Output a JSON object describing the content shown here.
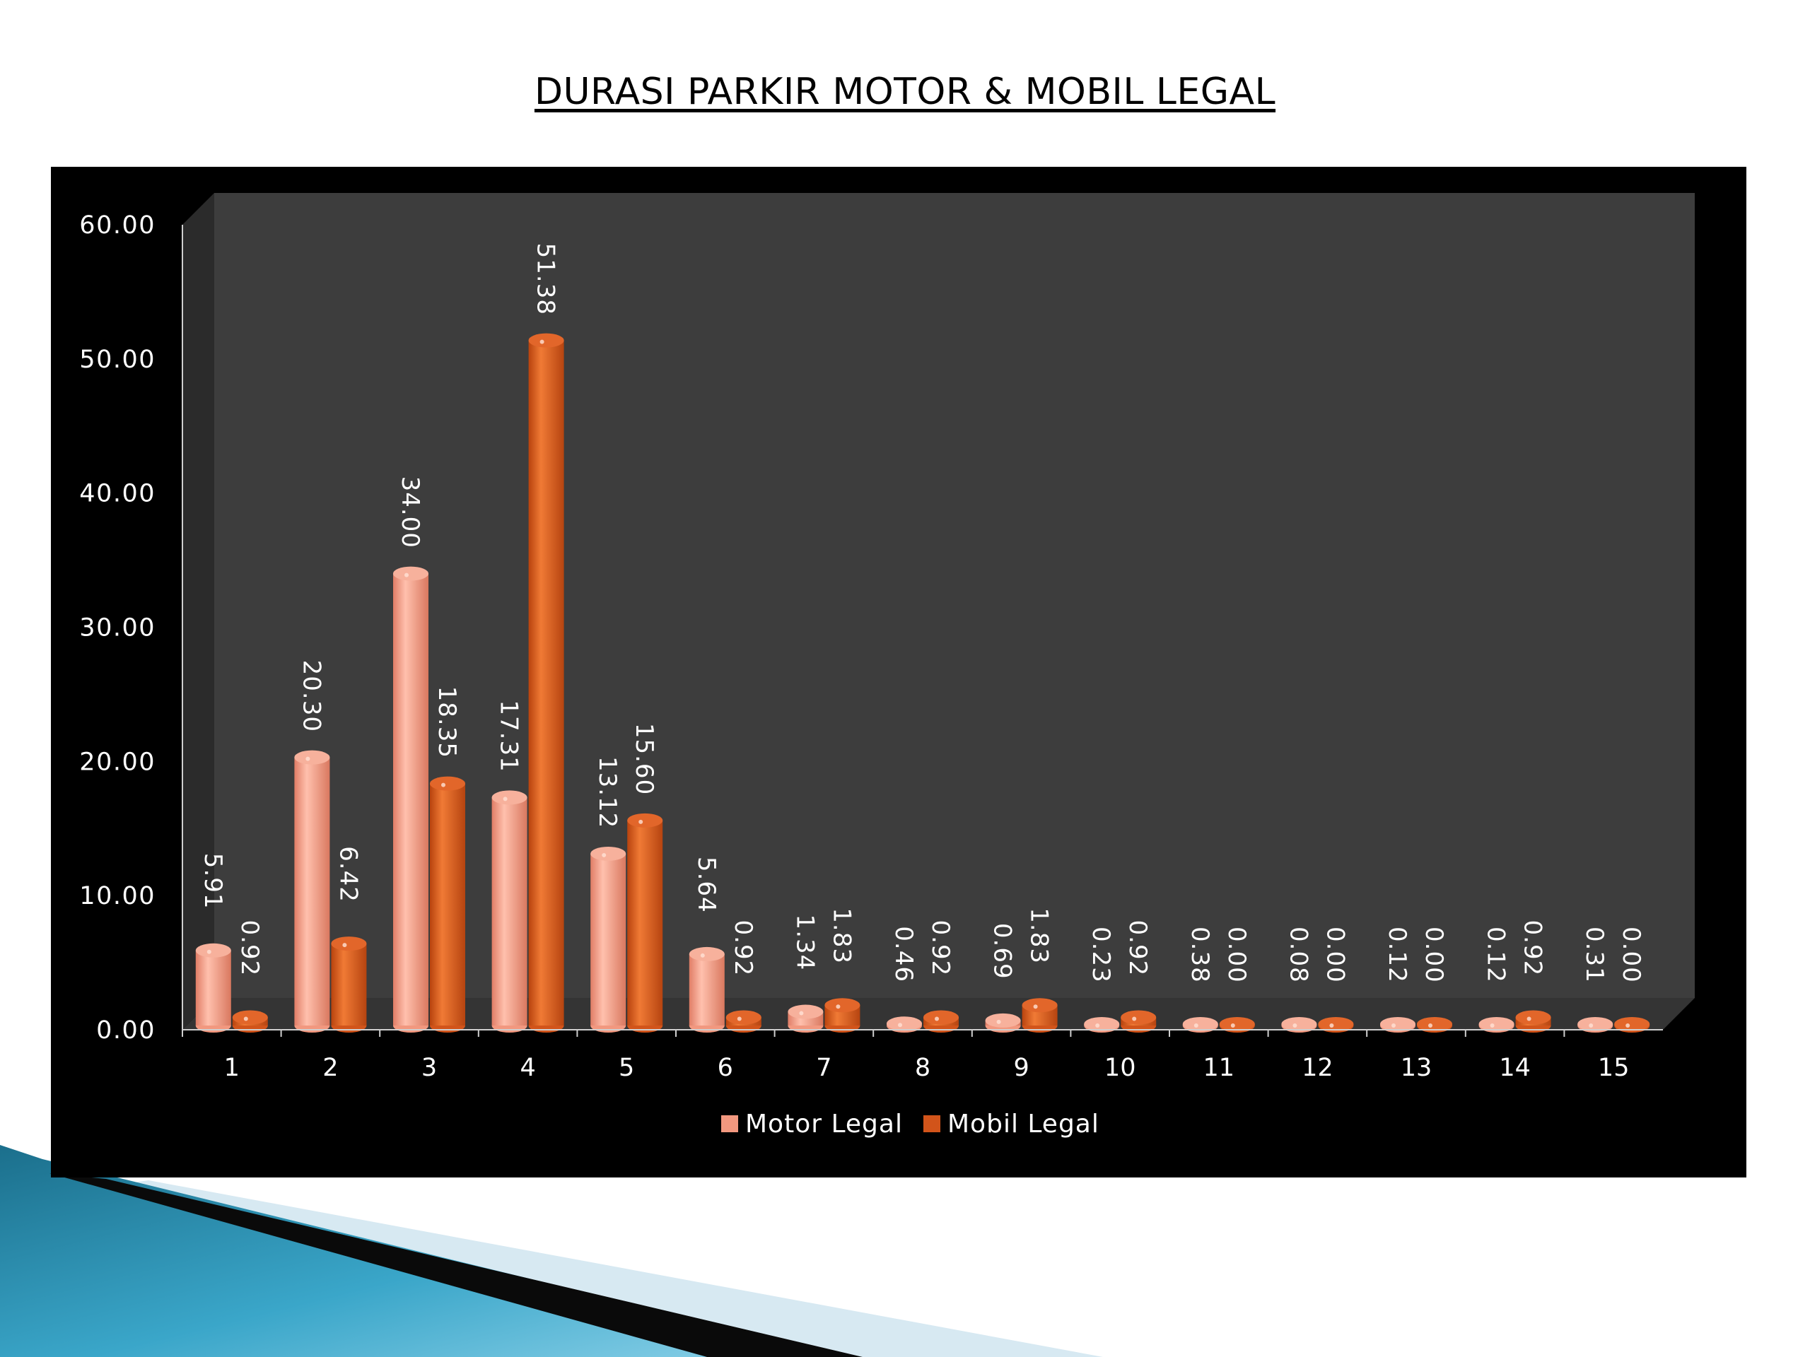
{
  "slide": {
    "title": "DURASI PARKIR MOTOR & MOBIL LEGAL"
  },
  "colors": {
    "motor": "#f2987f",
    "mobil": "#d2541a",
    "plot_background": "#3d3d3d",
    "panel_background": "#000000"
  },
  "chart_data": {
    "type": "bar",
    "title": "DURASI PARKIR MOTOR & MOBIL LEGAL",
    "categories": [
      "1",
      "2",
      "3",
      "4",
      "5",
      "6",
      "7",
      "8",
      "9",
      "10",
      "11",
      "12",
      "13",
      "14",
      "15"
    ],
    "series": [
      {
        "name": "Motor Legal",
        "values": [
          5.91,
          20.3,
          34.0,
          17.31,
          13.12,
          5.64,
          1.34,
          0.46,
          0.69,
          0.23,
          0.38,
          0.08,
          0.12,
          0.12,
          0.31
        ],
        "labels": [
          "5.91",
          "20.30",
          "34.00",
          "17.31",
          "13.12",
          "5.64",
          "1.34",
          "0.46",
          "0.69",
          "0.23",
          "0.38",
          "0.08",
          "0.12",
          "0.12",
          "0.31"
        ]
      },
      {
        "name": "Mobil Legal",
        "values": [
          0.92,
          6.42,
          18.35,
          51.38,
          15.6,
          0.92,
          1.83,
          0.92,
          1.83,
          0.92,
          0.0,
          0.0,
          0.0,
          0.92,
          0.0
        ],
        "labels": [
          "0.92",
          "6.42",
          "18.35",
          "51.38",
          "15.60",
          "0.92",
          "1.83",
          "0.92",
          "1.83",
          "0.92",
          "0.00",
          "0.00",
          "0.00",
          "0.92",
          "0.00"
        ]
      }
    ],
    "ylim": [
      0,
      60
    ],
    "yticks": [
      "0.00",
      "10.00",
      "20.00",
      "30.00",
      "40.00",
      "50.00",
      "60.00"
    ],
    "xlabel": "",
    "ylabel": "",
    "grid": false,
    "legend": "bottom",
    "three_d": true
  }
}
